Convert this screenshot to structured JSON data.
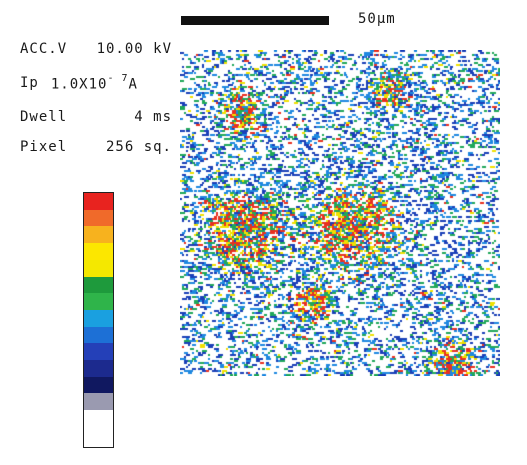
{
  "scale_bar": {
    "label": "50µm"
  },
  "parameters": {
    "acc_v": {
      "name": "ACC.V",
      "value": "10.00 kV"
    },
    "ip": {
      "name": "Ip",
      "mantissa": "1.0X10",
      "exponent": "- 7",
      "unit": "A"
    },
    "dwell": {
      "name": "Dwell",
      "value": "4 ms"
    },
    "pixel": {
      "name": "Pixel",
      "value": "256 sq."
    }
  },
  "colorbar": {
    "colors": [
      "#e8231f",
      "#f06a2a",
      "#f7b21e",
      "#fce700",
      "#f4e800",
      "#1e9a3c",
      "#2fb44a",
      "#1aa0e0",
      "#1d70d6",
      "#2440b8",
      "#1c2a8e",
      "#101860",
      "#9a9ab0",
      "#ffffff"
    ]
  },
  "map": {
    "background": "#ffffff",
    "palette": [
      "#1a3fb8",
      "#1e88e0",
      "#20a85a",
      "#f0e000",
      "#e83020"
    ]
  }
}
